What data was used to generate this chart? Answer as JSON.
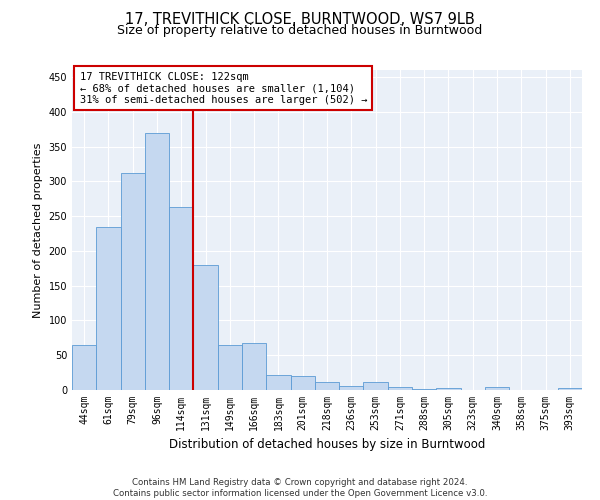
{
  "title": "17, TREVITHICK CLOSE, BURNTWOOD, WS7 9LB",
  "subtitle": "Size of property relative to detached houses in Burntwood",
  "xlabel": "Distribution of detached houses by size in Burntwood",
  "ylabel": "Number of detached properties",
  "bar_labels": [
    "44sqm",
    "61sqm",
    "79sqm",
    "96sqm",
    "114sqm",
    "131sqm",
    "149sqm",
    "166sqm",
    "183sqm",
    "201sqm",
    "218sqm",
    "236sqm",
    "253sqm",
    "271sqm",
    "288sqm",
    "305sqm",
    "323sqm",
    "340sqm",
    "358sqm",
    "375sqm",
    "393sqm"
  ],
  "bar_values": [
    65,
    235,
    312,
    370,
    263,
    180,
    65,
    68,
    22,
    20,
    11,
    6,
    11,
    4,
    2,
    3,
    0,
    4,
    0,
    0,
    3
  ],
  "bar_color": "#c5d8f0",
  "bar_edge_color": "#5b9bd5",
  "vline_x": 4.5,
  "vline_color": "#cc0000",
  "annotation_line1": "17 TREVITHICK CLOSE: 122sqm",
  "annotation_line2": "← 68% of detached houses are smaller (1,104)",
  "annotation_line3": "31% of semi-detached houses are larger (502) →",
  "annotation_box_color": "#ffffff",
  "annotation_box_edge": "#cc0000",
  "ylim": [
    0,
    460
  ],
  "yticks": [
    0,
    50,
    100,
    150,
    200,
    250,
    300,
    350,
    400,
    450
  ],
  "bg_color": "#eaf0f8",
  "footer_line1": "Contains HM Land Registry data © Crown copyright and database right 2024.",
  "footer_line2": "Contains public sector information licensed under the Open Government Licence v3.0.",
  "title_fontsize": 10.5,
  "subtitle_fontsize": 9,
  "xlabel_fontsize": 8.5,
  "ylabel_fontsize": 8,
  "tick_fontsize": 7,
  "annotation_fontsize": 7.5,
  "footer_fontsize": 6.2
}
